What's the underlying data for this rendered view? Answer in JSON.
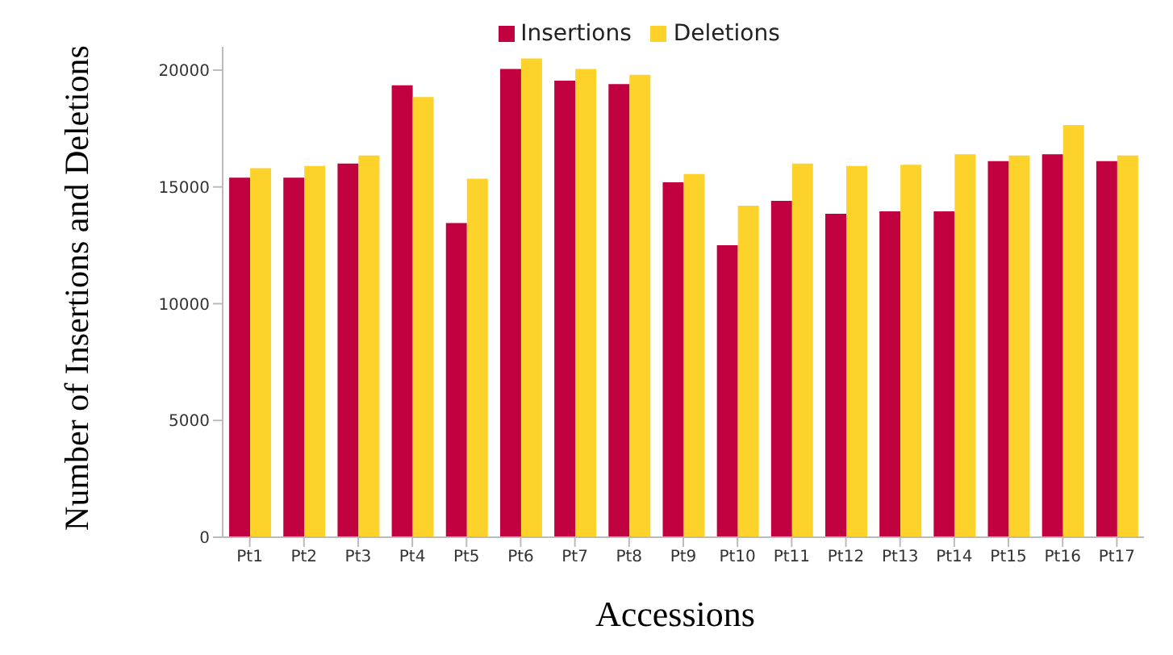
{
  "chart_data": {
    "type": "bar",
    "xlabel": "Accessions",
    "ylabel": "Number of Insertions and Deletions",
    "categories": [
      "Pt1",
      "Pt2",
      "Pt3",
      "Pt4",
      "Pt5",
      "Pt6",
      "Pt7",
      "Pt8",
      "Pt9",
      "Pt10",
      "Pt11",
      "Pt12",
      "Pt13",
      "Pt14",
      "Pt15",
      "Pt16",
      "Pt17"
    ],
    "series": [
      {
        "name": "Insertions",
        "color": "#c0003f",
        "values": [
          15400,
          15400,
          16000,
          19350,
          13450,
          20050,
          19550,
          19400,
          15200,
          12500,
          14400,
          13850,
          13950,
          13950,
          16100,
          16400,
          16100
        ]
      },
      {
        "name": "Deletions",
        "color": "#fdd22a",
        "values": [
          15800,
          15900,
          16350,
          18850,
          15350,
          20500,
          20050,
          19800,
          15550,
          14200,
          16000,
          15900,
          15950,
          16400,
          16350,
          17650,
          16350
        ]
      }
    ],
    "ylim": [
      0,
      21000
    ],
    "yticks": [
      0,
      5000,
      10000,
      15000,
      20000
    ],
    "grid": false,
    "legend": "top"
  }
}
